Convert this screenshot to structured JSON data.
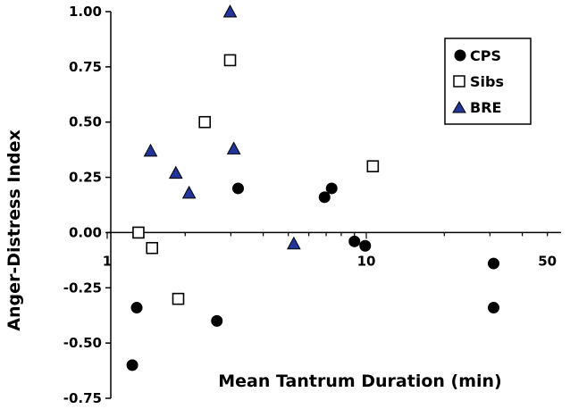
{
  "chart_data": {
    "type": "scatter",
    "xlabel": "Mean Tantrum Duration (min)",
    "ylabel": "Anger-Distress Index",
    "x_scale": "log",
    "xlim": [
      1,
      50
    ],
    "ylim": [
      -0.75,
      1.0
    ],
    "x_ticks": [
      1,
      10,
      50
    ],
    "x_tick_labels": [
      "1",
      "10",
      "50"
    ],
    "y_ticks": [
      1.0,
      0.75,
      0.5,
      0.25,
      0.0,
      -0.25,
      -0.5,
      -0.75
    ],
    "y_tick_labels": [
      "1.00",
      "0.75",
      "0.50",
      "0.25",
      "0.00",
      "-0.25",
      "-0.50",
      "-0.75"
    ],
    "grid": false,
    "legend_position": "top-right",
    "series": [
      {
        "name": "CPS",
        "marker": "filled-circle",
        "color": "#000000",
        "points": [
          {
            "x": 1.25,
            "y": -0.6
          },
          {
            "x": 1.3,
            "y": -0.34
          },
          {
            "x": 2.65,
            "y": -0.4
          },
          {
            "x": 3.2,
            "y": 0.2
          },
          {
            "x": 6.9,
            "y": 0.16
          },
          {
            "x": 7.35,
            "y": 0.2
          },
          {
            "x": 9.0,
            "y": -0.04
          },
          {
            "x": 9.9,
            "y": -0.06
          },
          {
            "x": 31.0,
            "y": -0.14
          },
          {
            "x": 31.0,
            "y": -0.34
          }
        ]
      },
      {
        "name": "Sibs",
        "marker": "open-square",
        "color": "#000000",
        "points": [
          {
            "x": 1.32,
            "y": 0.0
          },
          {
            "x": 1.49,
            "y": -0.07
          },
          {
            "x": 1.88,
            "y": -0.3
          },
          {
            "x": 2.38,
            "y": 0.5
          },
          {
            "x": 2.98,
            "y": 0.78
          },
          {
            "x": 10.6,
            "y": 0.3
          }
        ]
      },
      {
        "name": "BRE",
        "marker": "filled-triangle",
        "color": "#24359a",
        "points": [
          {
            "x": 1.47,
            "y": 0.37
          },
          {
            "x": 1.84,
            "y": 0.27
          },
          {
            "x": 2.07,
            "y": 0.18
          },
          {
            "x": 2.98,
            "y": 1.0
          },
          {
            "x": 3.08,
            "y": 0.38
          },
          {
            "x": 5.25,
            "y": -0.05
          }
        ]
      }
    ]
  }
}
